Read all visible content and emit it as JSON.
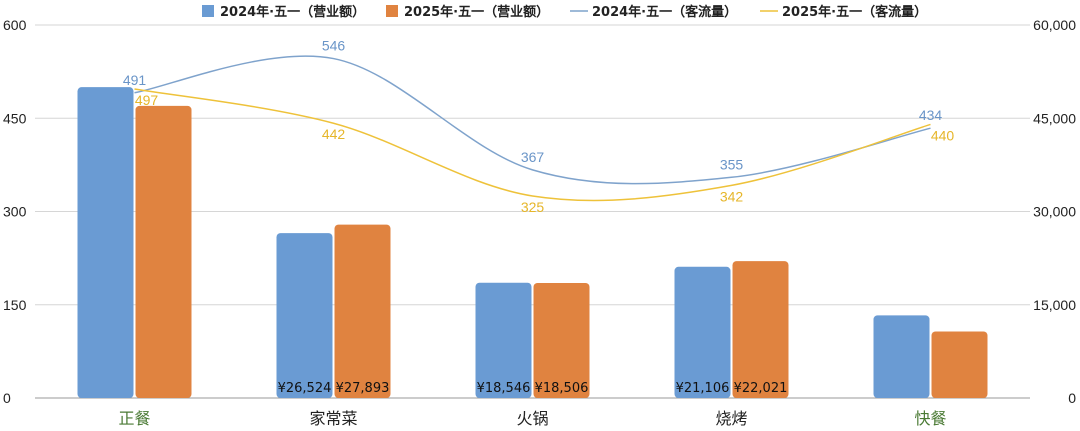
{
  "chart_data": {
    "type": "bar",
    "categories": [
      "正餐",
      "家常菜",
      "火锅",
      "烧烤",
      "快餐"
    ],
    "category_colors": [
      "#4a7a34",
      "#222222",
      "#222222",
      "#222222",
      "#4a7a34"
    ],
    "left_axis": {
      "ylim": [
        0,
        600
      ],
      "ticks": [
        "0",
        "150",
        "300",
        "450",
        "600"
      ],
      "tick_values": [
        0,
        150,
        300,
        450,
        600
      ]
    },
    "right_axis": {
      "ylim": [
        0,
        60000
      ],
      "ticks": [
        "0",
        "15,000",
        "30,000",
        "45,000",
        "60,000"
      ],
      "tick_values": [
        0,
        15000,
        30000,
        45000,
        60000
      ]
    },
    "grid": true,
    "legend_position": "top",
    "series": [
      {
        "name": "2024年·五一（营业额）",
        "kind": "bar",
        "axis": "right",
        "color": "#6a9bd3",
        "values": [
          50000,
          26524,
          18546,
          21106,
          13300
        ],
        "labels": [
          "",
          "¥26,524",
          "¥18,546",
          "¥21,106",
          ""
        ]
      },
      {
        "name": "2025年·五一（营业额）",
        "kind": "bar",
        "axis": "right",
        "color": "#e08340",
        "values": [
          47000,
          27893,
          18506,
          22021,
          10700
        ],
        "labels": [
          "",
          "¥27,893",
          "¥18,506",
          "¥22,021",
          ""
        ]
      },
      {
        "name": "2024年·五一（客流量）",
        "kind": "line",
        "axis": "left",
        "color": "#7fa3cc",
        "label_color": "#6a95c8",
        "values": [
          491,
          546,
          367,
          355,
          434
        ],
        "labels": [
          "491",
          "546",
          "367",
          "355",
          "434"
        ]
      },
      {
        "name": "2025年·五一（客流量）",
        "kind": "line",
        "axis": "left",
        "color": "#eec23a",
        "label_color": "#e6b62a",
        "values": [
          497,
          442,
          325,
          342,
          440
        ],
        "labels": [
          "497",
          "442",
          "325",
          "342",
          "440"
        ]
      }
    ]
  }
}
